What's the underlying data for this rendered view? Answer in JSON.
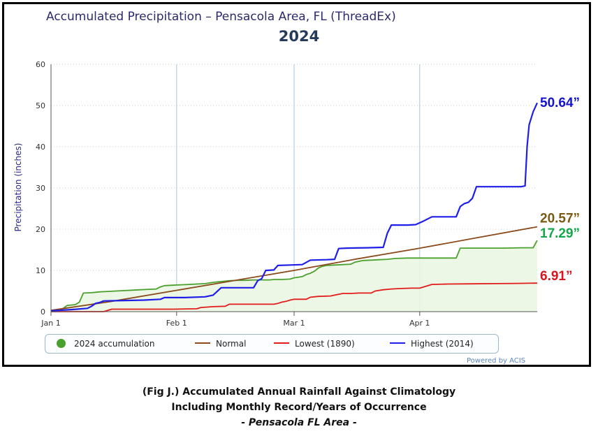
{
  "chart_data": {
    "type": "line",
    "title": "Accumulated Precipitation – Pensacola Area, FL (ThreadEx)",
    "subtitle": "2024",
    "ylabel": "Precipitation (inches)",
    "xlabel": "",
    "ylim": [
      0,
      60
    ],
    "yticks": [
      0,
      10,
      20,
      30,
      40,
      50,
      60
    ],
    "x_domain_days": [
      0,
      120
    ],
    "xticks": [
      {
        "day": 0,
        "label": "Jan 1"
      },
      {
        "day": 31,
        "label": "Feb 1"
      },
      {
        "day": 60,
        "label": "Mar 1"
      },
      {
        "day": 91,
        "label": "Apr 1"
      }
    ],
    "grid": true,
    "legend_position": "bottom",
    "series": [
      {
        "name": "2024 accumulation",
        "color": "#4aa02c",
        "style": "area",
        "end_label": "17.29”",
        "points": [
          [
            0,
            0.3
          ],
          [
            2,
            0.5
          ],
          [
            3,
            0.8
          ],
          [
            4,
            1.5
          ],
          [
            6,
            1.7
          ],
          [
            7,
            2.3
          ],
          [
            8,
            4.5
          ],
          [
            10,
            4.6
          ],
          [
            11,
            4.7
          ],
          [
            12,
            4.8
          ],
          [
            14,
            4.9
          ],
          [
            16,
            5.0
          ],
          [
            18,
            5.1
          ],
          [
            20,
            5.2
          ],
          [
            22,
            5.3
          ],
          [
            24,
            5.4
          ],
          [
            26,
            5.5
          ],
          [
            27,
            6.0
          ],
          [
            28,
            6.3
          ],
          [
            30,
            6.4
          ],
          [
            32,
            6.5
          ],
          [
            34,
            6.6
          ],
          [
            36,
            6.7
          ],
          [
            38,
            6.8
          ],
          [
            40,
            7.1
          ],
          [
            42,
            7.3
          ],
          [
            44,
            7.5
          ],
          [
            46,
            7.6
          ],
          [
            48,
            7.6
          ],
          [
            50,
            7.7
          ],
          [
            52,
            7.7
          ],
          [
            54,
            7.7
          ],
          [
            55,
            7.8
          ],
          [
            57,
            7.8
          ],
          [
            59,
            7.9
          ],
          [
            60,
            8.2
          ],
          [
            62,
            8.5
          ],
          [
            63,
            9.0
          ],
          [
            64,
            9.3
          ],
          [
            65,
            9.8
          ],
          [
            66,
            10.6
          ],
          [
            67,
            11.0
          ],
          [
            68,
            11.2
          ],
          [
            70,
            11.3
          ],
          [
            72,
            11.4
          ],
          [
            74,
            11.5
          ],
          [
            75,
            12.0
          ],
          [
            77,
            12.4
          ],
          [
            79,
            12.5
          ],
          [
            81,
            12.6
          ],
          [
            83,
            12.7
          ],
          [
            85,
            12.9
          ],
          [
            88,
            13.0
          ],
          [
            91,
            13.0
          ],
          [
            95,
            13.0
          ],
          [
            100,
            13.0
          ],
          [
            101,
            15.4
          ],
          [
            104,
            15.4
          ],
          [
            108,
            15.4
          ],
          [
            112,
            15.4
          ],
          [
            116,
            15.5
          ],
          [
            119,
            15.5
          ],
          [
            120,
            17.29
          ]
        ]
      },
      {
        "name": "Normal",
        "color": "#8b4a1c",
        "style": "line",
        "end_label": "20.57”",
        "points": [
          [
            0,
            0.3
          ],
          [
            15,
            2.5
          ],
          [
            30,
            5.0
          ],
          [
            45,
            7.5
          ],
          [
            60,
            10.0
          ],
          [
            75,
            12.7
          ],
          [
            90,
            15.2
          ],
          [
            105,
            17.9
          ],
          [
            120,
            20.57
          ]
        ]
      },
      {
        "name": "Lowest (1890)",
        "color": "#e21b1b",
        "style": "line",
        "end_label": "6.91”",
        "points": [
          [
            0,
            0.0
          ],
          [
            13,
            0.0
          ],
          [
            15,
            0.6
          ],
          [
            20,
            0.6
          ],
          [
            25,
            0.6
          ],
          [
            30,
            0.6
          ],
          [
            36,
            0.7
          ],
          [
            37,
            1.0
          ],
          [
            40,
            1.2
          ],
          [
            43,
            1.3
          ],
          [
            44,
            1.8
          ],
          [
            48,
            1.8
          ],
          [
            52,
            1.8
          ],
          [
            55,
            1.8
          ],
          [
            56,
            2.0
          ],
          [
            57,
            2.3
          ],
          [
            58,
            2.5
          ],
          [
            59,
            2.8
          ],
          [
            60,
            3.0
          ],
          [
            63,
            3.0
          ],
          [
            64,
            3.5
          ],
          [
            66,
            3.7
          ],
          [
            69,
            3.8
          ],
          [
            70,
            4.0
          ],
          [
            72,
            4.4
          ],
          [
            74,
            4.4
          ],
          [
            76,
            4.5
          ],
          [
            79,
            4.5
          ],
          [
            80,
            5.0
          ],
          [
            82,
            5.3
          ],
          [
            84,
            5.5
          ],
          [
            86,
            5.6
          ],
          [
            89,
            5.7
          ],
          [
            91,
            5.7
          ],
          [
            92,
            6.0
          ],
          [
            94,
            6.6
          ],
          [
            98,
            6.7
          ],
          [
            104,
            6.75
          ],
          [
            110,
            6.8
          ],
          [
            115,
            6.85
          ],
          [
            120,
            6.91
          ]
        ]
      },
      {
        "name": "Highest (2014)",
        "color": "#1e1ee8",
        "style": "line",
        "end_label": "50.64”",
        "points": [
          [
            0,
            0.2
          ],
          [
            5,
            0.5
          ],
          [
            9,
            0.8
          ],
          [
            10,
            1.3
          ],
          [
            11,
            2.0
          ],
          [
            12,
            2.2
          ],
          [
            13,
            2.6
          ],
          [
            18,
            2.7
          ],
          [
            23,
            2.8
          ],
          [
            27,
            3.0
          ],
          [
            28,
            3.4
          ],
          [
            33,
            3.4
          ],
          [
            38,
            3.6
          ],
          [
            40,
            4.0
          ],
          [
            42,
            5.8
          ],
          [
            45,
            5.8
          ],
          [
            50,
            5.8
          ],
          [
            51,
            7.5
          ],
          [
            52,
            8.0
          ],
          [
            53,
            10.0
          ],
          [
            55,
            10.1
          ],
          [
            56,
            11.2
          ],
          [
            59,
            11.3
          ],
          [
            62,
            11.4
          ],
          [
            64,
            12.5
          ],
          [
            68,
            12.6
          ],
          [
            70,
            12.7
          ],
          [
            71,
            15.3
          ],
          [
            73,
            15.4
          ],
          [
            78,
            15.5
          ],
          [
            82,
            15.6
          ],
          [
            83,
            19.0
          ],
          [
            84,
            21.0
          ],
          [
            88,
            21.0
          ],
          [
            90,
            21.1
          ],
          [
            92,
            22.0
          ],
          [
            94,
            23.0
          ],
          [
            100,
            23.0
          ],
          [
            101,
            25.5
          ],
          [
            102,
            26.2
          ],
          [
            103,
            26.5
          ],
          [
            104,
            27.5
          ],
          [
            105,
            30.3
          ],
          [
            110,
            30.3
          ],
          [
            116,
            30.3
          ],
          [
            117,
            30.5
          ],
          [
            117.5,
            40
          ],
          [
            118,
            45.3
          ],
          [
            119,
            48.5
          ],
          [
            120,
            50.64
          ]
        ]
      }
    ]
  },
  "caption": {
    "line1": "(Fig J.) Accumulated Annual Rainfall Against  Climatology",
    "line2": "Including Monthly Record/Years of Occurrence",
    "line3": "- Pensacola FL Area -"
  },
  "credits": "Powered by ACIS"
}
